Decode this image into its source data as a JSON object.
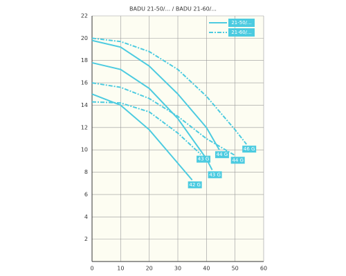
{
  "chart_data": {
    "type": "line",
    "title": "BADU 21-50/... / BADU 21-60/...",
    "xlim": [
      0,
      60
    ],
    "xticks": [
      0,
      10,
      20,
      30,
      40,
      50,
      60
    ],
    "ylim": [
      0,
      22
    ],
    "yticks": [
      2,
      4,
      6,
      8,
      10,
      12,
      14,
      16,
      18,
      20,
      22
    ],
    "grid": true,
    "color": "#4ccbe0",
    "legend_position": "upper right",
    "legend": [
      {
        "name": "21-50/...",
        "style": "solid"
      },
      {
        "name": "21-60/...",
        "style": "dashed"
      }
    ],
    "series": [
      {
        "label": "42 G",
        "style": "solid",
        "x": [
          0,
          10,
          20,
          30,
          35
        ],
        "values": [
          15,
          14,
          11.8,
          8.8,
          7.3
        ]
      },
      {
        "label": "43 G",
        "style": "solid",
        "x": [
          0,
          10,
          20,
          30,
          40,
          42
        ],
        "values": [
          17.8,
          17.2,
          15.5,
          12.8,
          9.2,
          8.2
        ]
      },
      {
        "label": "44 G",
        "style": "solid",
        "x": [
          0,
          10,
          20,
          30,
          40,
          44.5
        ],
        "values": [
          19.8,
          19.2,
          17.5,
          15,
          12,
          10
        ]
      },
      {
        "label": "43 G",
        "style": "dashed",
        "x": [
          0,
          10,
          20,
          30,
          38
        ],
        "values": [
          14.3,
          14.2,
          13.4,
          11.5,
          9.6
        ]
      },
      {
        "label": "44 G",
        "style": "dashed",
        "x": [
          0,
          10,
          20,
          30,
          40,
          50
        ],
        "values": [
          16,
          15.6,
          14.6,
          13,
          11,
          9.5
        ]
      },
      {
        "label": "46 G",
        "style": "dashed",
        "x": [
          0,
          10,
          20,
          30,
          40,
          50,
          54
        ],
        "values": [
          20,
          19.7,
          18.8,
          17.2,
          14.8,
          11.8,
          10.5
        ]
      }
    ]
  }
}
